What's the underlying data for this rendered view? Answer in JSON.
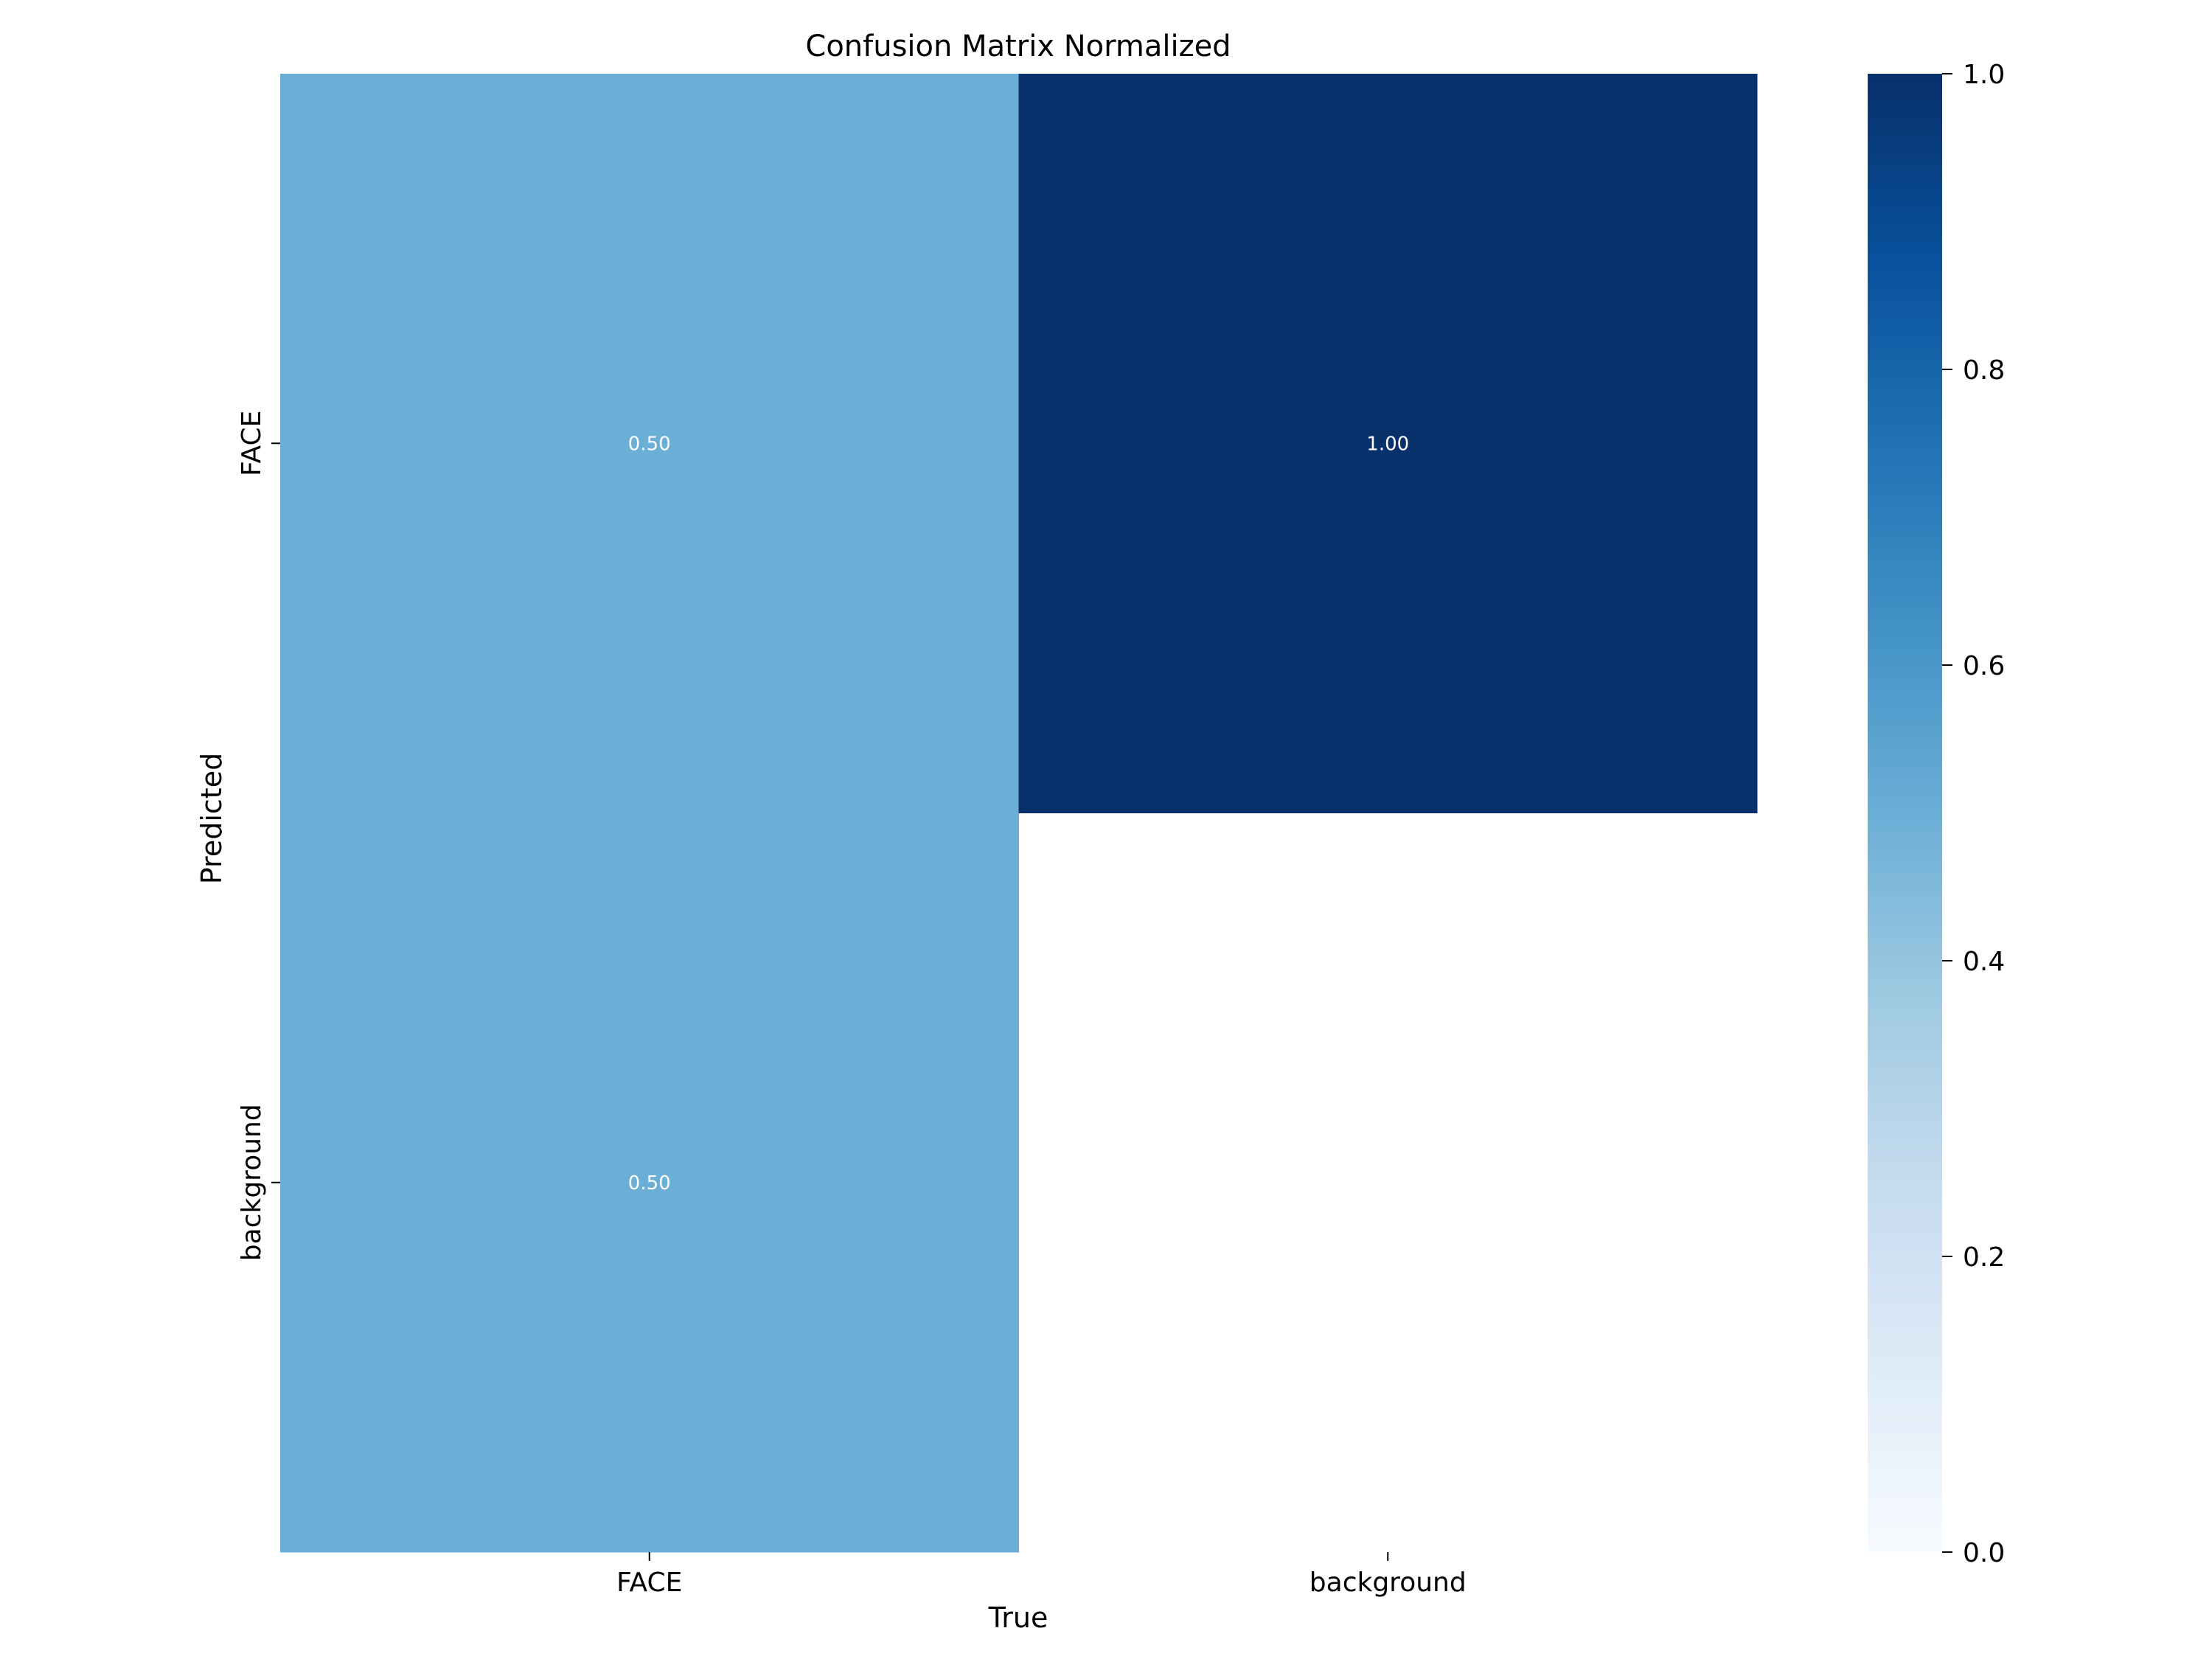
{
  "chart_data": {
    "type": "heatmap",
    "title": "Confusion Matrix Normalized",
    "xlabel": "True",
    "ylabel": "Predicted",
    "x_categories": [
      "FACE",
      "background"
    ],
    "y_categories": [
      "FACE",
      "background"
    ],
    "values": [
      [
        0.5,
        1.0
      ],
      [
        0.5,
        null
      ]
    ],
    "cell_labels": [
      [
        "0.50",
        "1.00"
      ],
      [
        "0.50",
        ""
      ]
    ],
    "colormap": "Blues",
    "colorbar": {
      "range": [
        0.0,
        1.0
      ],
      "ticks": [
        0.0,
        0.2,
        0.4,
        0.6,
        0.8,
        1.0
      ],
      "tick_labels": [
        "0.0",
        "0.2",
        "0.4",
        "0.6",
        "0.8",
        "1.0"
      ]
    },
    "colors": {
      "low": "#f7fbff",
      "high": "#08306b",
      "cell_text": "#ffffff"
    }
  }
}
